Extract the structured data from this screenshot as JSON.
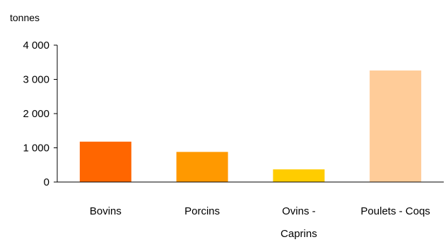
{
  "chart_data": {
    "type": "bar",
    "ylabel": "tonnes",
    "categories": [
      [
        "Bovins"
      ],
      [
        "Porcins"
      ],
      [
        "Ovins -",
        "Caprins"
      ],
      [
        "Poulets - Coqs"
      ]
    ],
    "values": [
      1180,
      880,
      370,
      3260
    ],
    "colors": [
      "#ff6600",
      "#ff9900",
      "#ffcc00",
      "#ffcc99"
    ],
    "ylim": [
      0,
      4000
    ],
    "yticks": [
      0,
      1000,
      2000,
      3000,
      4000
    ],
    "ytick_labels": [
      "0",
      "1 000",
      "2 000",
      "3 000",
      "4 000"
    ],
    "grid": false,
    "legend": "none"
  }
}
